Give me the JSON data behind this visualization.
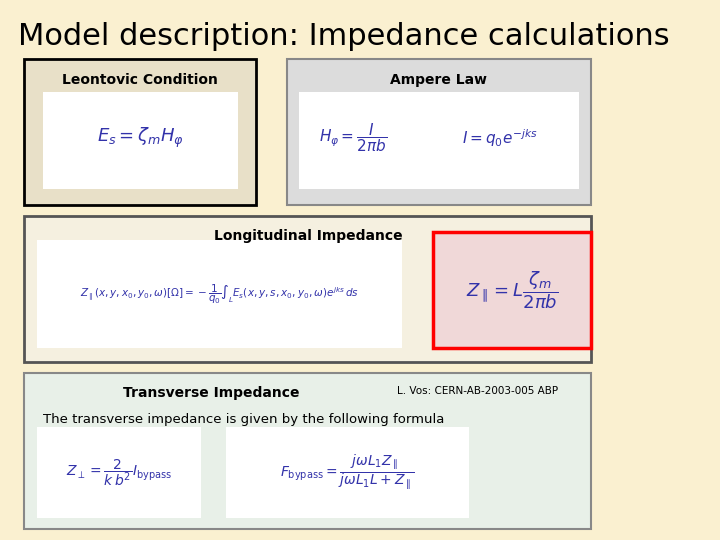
{
  "title": "Model description: Impedance calculations",
  "bg_color": "#FAF0D0",
  "title_fontsize": 22,
  "leontovic_title": "Leontovic Condition",
  "leontovic_formula": "$E_s = \\zeta_m H_\\varphi$",
  "ampere_title": "Ampere Law",
  "ampere_formula1": "$H_\\varphi = \\dfrac{I}{2\\pi b}$",
  "ampere_formula2": "$I = q_0 e^{-jks}$",
  "longitudinal_title": "Longitudinal Impedance",
  "longitudinal_formula": "$Z_\\parallel(x,y,x_0,y_0,\\omega)[\\Omega] = -\\dfrac{1}{q_0}\\int_L E_s(x,y,s,x_0,y_0,\\omega)e^{jks}\\,ds$",
  "longitudinal_result": "$Z_\\parallel = L\\dfrac{\\zeta_m}{2\\pi b}$",
  "transverse_title": "Transverse Impedance",
  "reference": "L. Vos: CERN-AB-2003-005 ABP",
  "transverse_text": "The transverse impedance is given by the following formula",
  "transverse_formula1": "$Z_\\perp = \\dfrac{2}{k\\,b^2} I_{\\mathrm{bypass}}$",
  "transverse_formula2": "$F_{\\mathrm{bypass}} = \\dfrac{j\\omega L_1 Z_\\parallel}{j\\omega L_1 L + Z_\\parallel}$"
}
